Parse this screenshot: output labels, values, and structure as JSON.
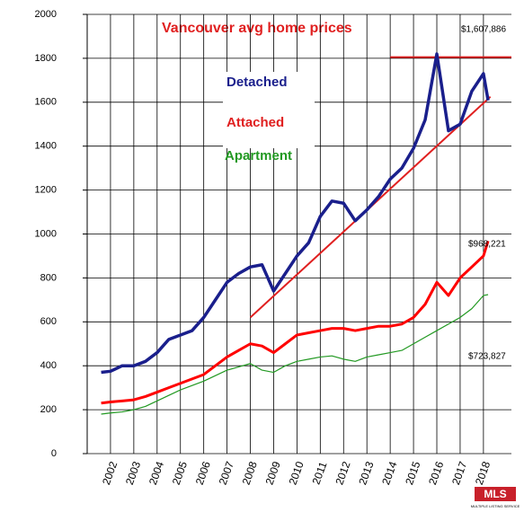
{
  "chart_data": {
    "type": "line",
    "title": "Vancouver avg home prices",
    "x": [
      2001.6,
      2002,
      2002.5,
      2003,
      2003.5,
      2004,
      2004.5,
      2005,
      2005.5,
      2006,
      2006.5,
      2007,
      2007.5,
      2008,
      2008.5,
      2009,
      2009.5,
      2010,
      2010.5,
      2011,
      2011.5,
      2012,
      2012.5,
      2013,
      2013.5,
      2014,
      2014.5,
      2015,
      2015.5,
      2016,
      2016.5,
      2017,
      2017.5,
      2018,
      2018.2
    ],
    "series": [
      {
        "name": "Detached",
        "color": "#1a1f8c",
        "values": [
          370,
          375,
          400,
          400,
          420,
          460,
          520,
          540,
          560,
          620,
          700,
          780,
          820,
          850,
          860,
          740,
          820,
          900,
          960,
          1080,
          1150,
          1140,
          1060,
          1110,
          1170,
          1250,
          1300,
          1390,
          1520,
          1820,
          1470,
          1500,
          1650,
          1730,
          1608
        ]
      },
      {
        "name": "Attached",
        "color": "#ff0000",
        "values": [
          230,
          235,
          240,
          245,
          260,
          280,
          300,
          320,
          340,
          360,
          400,
          440,
          470,
          500,
          490,
          460,
          500,
          540,
          550,
          560,
          570,
          570,
          560,
          570,
          580,
          580,
          590,
          620,
          680,
          780,
          720,
          800,
          850,
          900,
          968
        ]
      },
      {
        "name": "Apartment",
        "color": "#229922",
        "values": [
          180,
          185,
          190,
          200,
          215,
          240,
          265,
          290,
          310,
          330,
          355,
          380,
          395,
          410,
          380,
          370,
          400,
          420,
          430,
          440,
          445,
          430,
          420,
          440,
          450,
          460,
          470,
          500,
          530,
          560,
          590,
          620,
          660,
          720,
          724
        ]
      }
    ],
    "annotations": [
      "$1,607,886",
      "$968,221",
      "$723,827"
    ],
    "trend_lines": [
      {
        "color": "#e02020",
        "x": [
          2008,
          2018.3
        ],
        "y": [
          620,
          1625
        ]
      },
      {
        "color": "#e02020",
        "x": [
          2014,
          2019.2
        ],
        "y": [
          1805,
          1805
        ]
      }
    ],
    "logo": {
      "text": "MLS",
      "subtext": "MULTIPLE LISTING SERVICE"
    },
    "xlim": [
      2001,
      2019.2
    ],
    "xticks": [
      2002,
      2003,
      2004,
      2005,
      2006,
      2007,
      2008,
      2009,
      2010,
      2011,
      2012,
      2013,
      2014,
      2015,
      2016,
      2017,
      2018
    ],
    "ylim": [
      0,
      2000
    ],
    "yticks": [
      0,
      200,
      400,
      600,
      800,
      1000,
      1200,
      1400,
      1600,
      1800,
      2000
    ],
    "grid": true
  }
}
